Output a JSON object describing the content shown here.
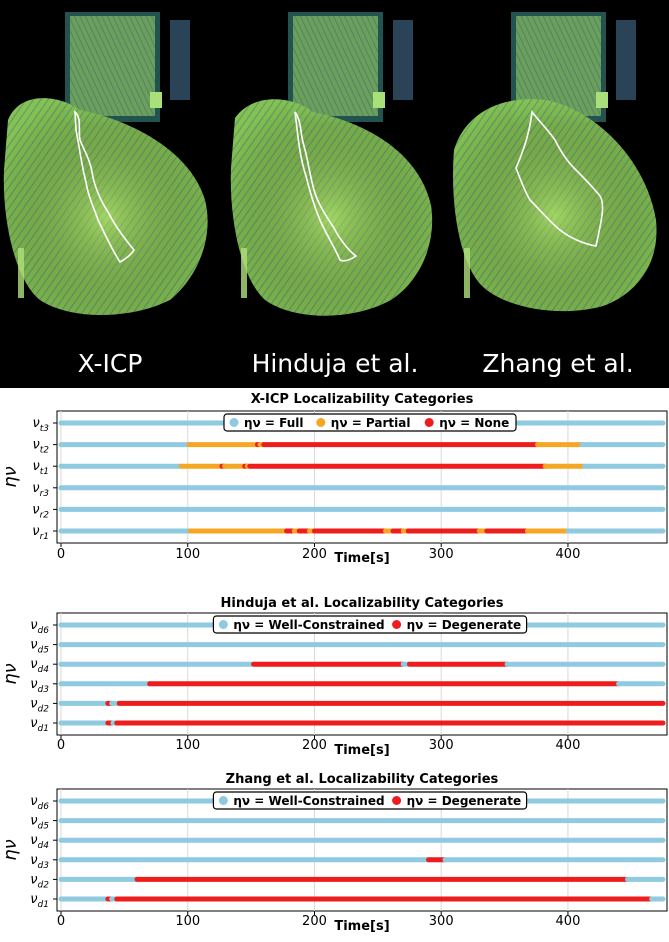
{
  "maps": [
    {
      "label": "X-ICP"
    },
    {
      "label": "Hinduja et al."
    },
    {
      "label": "Zhang et al."
    }
  ],
  "colors": {
    "full": "#8ecae0",
    "partial": "#f5a623",
    "none": "#ee1c1c",
    "map_green": "#9ad35a",
    "map_teal": "#2f8e8a",
    "trajectory": "#ffffff"
  },
  "chart_data": [
    {
      "type": "timeline",
      "title": "X-ICP Localizability Categories",
      "xlabel": "Time[s]",
      "ylabel": "ην",
      "xlim": [
        0,
        475
      ],
      "xticks": [
        0,
        100,
        200,
        300,
        400
      ],
      "grid": true,
      "legend": {
        "position": "top-center",
        "entries": [
          {
            "label": "ην = Full",
            "key": "full"
          },
          {
            "label": "ην = Partial",
            "key": "partial"
          },
          {
            "label": "ην = None",
            "key": "none"
          }
        ]
      },
      "rows": [
        {
          "base": "ν",
          "sub": "t3",
          "segments": [
            {
              "from": 0,
              "to": 475,
              "cat": "full"
            }
          ]
        },
        {
          "base": "ν",
          "sub": "t2",
          "segments": [
            {
              "from": 0,
              "to": 101,
              "cat": "full"
            },
            {
              "from": 101,
              "to": 155,
              "cat": "partial"
            },
            {
              "from": 155,
              "to": 157,
              "cat": "none"
            },
            {
              "from": 157,
              "to": 160,
              "cat": "partial"
            },
            {
              "from": 160,
              "to": 376,
              "cat": "none"
            },
            {
              "from": 376,
              "to": 411,
              "cat": "partial"
            },
            {
              "from": 411,
              "to": 475,
              "cat": "full"
            }
          ]
        },
        {
          "base": "ν",
          "sub": "t1",
          "segments": [
            {
              "from": 0,
              "to": 95,
              "cat": "full"
            },
            {
              "from": 95,
              "to": 127,
              "cat": "partial"
            },
            {
              "from": 127,
              "to": 129,
              "cat": "none"
            },
            {
              "from": 129,
              "to": 145,
              "cat": "partial"
            },
            {
              "from": 145,
              "to": 147,
              "cat": "none"
            },
            {
              "from": 147,
              "to": 149,
              "cat": "partial"
            },
            {
              "from": 149,
              "to": 382,
              "cat": "none"
            },
            {
              "from": 382,
              "to": 413,
              "cat": "partial"
            },
            {
              "from": 413,
              "to": 475,
              "cat": "full"
            }
          ]
        },
        {
          "base": "ν",
          "sub": "r3",
          "segments": [
            {
              "from": 0,
              "to": 475,
              "cat": "full"
            }
          ]
        },
        {
          "base": "ν",
          "sub": "r2",
          "segments": [
            {
              "from": 0,
              "to": 475,
              "cat": "full"
            }
          ]
        },
        {
          "base": "ν",
          "sub": "r1",
          "segments": [
            {
              "from": 0,
              "to": 102,
              "cat": "full"
            },
            {
              "from": 102,
              "to": 178,
              "cat": "partial"
            },
            {
              "from": 178,
              "to": 184,
              "cat": "none"
            },
            {
              "from": 184,
              "to": 188,
              "cat": "partial"
            },
            {
              "from": 188,
              "to": 196,
              "cat": "none"
            },
            {
              "from": 196,
              "to": 200,
              "cat": "partial"
            },
            {
              "from": 200,
              "to": 256,
              "cat": "none"
            },
            {
              "from": 256,
              "to": 262,
              "cat": "partial"
            },
            {
              "from": 262,
              "to": 270,
              "cat": "none"
            },
            {
              "from": 270,
              "to": 274,
              "cat": "partial"
            },
            {
              "from": 274,
              "to": 330,
              "cat": "none"
            },
            {
              "from": 330,
              "to": 336,
              "cat": "partial"
            },
            {
              "from": 336,
              "to": 368,
              "cat": "none"
            },
            {
              "from": 368,
              "to": 400,
              "cat": "partial"
            },
            {
              "from": 400,
              "to": 475,
              "cat": "full"
            }
          ]
        }
      ]
    },
    {
      "type": "timeline",
      "title": "Hinduja et al. Localizability Categories",
      "xlabel": "Time[s]",
      "ylabel": "ην",
      "xlim": [
        0,
        475
      ],
      "xticks": [
        0,
        100,
        200,
        300,
        400
      ],
      "grid": true,
      "legend": {
        "position": "top-center",
        "entries": [
          {
            "label": "ην = Well-Constrained",
            "key": "full"
          },
          {
            "label": "ην = Degenerate",
            "key": "none"
          }
        ]
      },
      "rows": [
        {
          "base": "ν",
          "sub": "d6",
          "segments": [
            {
              "from": 0,
              "to": 475,
              "cat": "full"
            }
          ]
        },
        {
          "base": "ν",
          "sub": "d5",
          "segments": [
            {
              "from": 0,
              "to": 475,
              "cat": "full"
            }
          ]
        },
        {
          "base": "ν",
          "sub": "d4",
          "segments": [
            {
              "from": 0,
              "to": 152,
              "cat": "full"
            },
            {
              "from": 152,
              "to": 270,
              "cat": "none"
            },
            {
              "from": 270,
              "to": 275,
              "cat": "full"
            },
            {
              "from": 275,
              "to": 352,
              "cat": "none"
            },
            {
              "from": 352,
              "to": 475,
              "cat": "full"
            }
          ]
        },
        {
          "base": "ν",
          "sub": "d3",
          "segments": [
            {
              "from": 0,
              "to": 70,
              "cat": "full"
            },
            {
              "from": 70,
              "to": 440,
              "cat": "none"
            },
            {
              "from": 440,
              "to": 475,
              "cat": "full"
            }
          ]
        },
        {
          "base": "ν",
          "sub": "d2",
          "segments": [
            {
              "from": 0,
              "to": 37,
              "cat": "full"
            },
            {
              "from": 37,
              "to": 40,
              "cat": "none"
            },
            {
              "from": 40,
              "to": 46,
              "cat": "full"
            },
            {
              "from": 46,
              "to": 475,
              "cat": "none"
            }
          ]
        },
        {
          "base": "ν",
          "sub": "d1",
          "segments": [
            {
              "from": 0,
              "to": 37,
              "cat": "full"
            },
            {
              "from": 37,
              "to": 41,
              "cat": "none"
            },
            {
              "from": 41,
              "to": 44,
              "cat": "full"
            },
            {
              "from": 44,
              "to": 475,
              "cat": "none"
            }
          ]
        }
      ]
    },
    {
      "type": "timeline",
      "title": "Zhang et al. Localizability Categories",
      "xlabel": "Time[s]",
      "ylabel": "ην",
      "xlim": [
        0,
        475
      ],
      "xticks": [
        0,
        100,
        200,
        300,
        400
      ],
      "grid": true,
      "legend": {
        "position": "top-center",
        "entries": [
          {
            "label": "ην = Well-Constrained",
            "key": "full"
          },
          {
            "label": "ην = Degenerate",
            "key": "none"
          }
        ]
      },
      "rows": [
        {
          "base": "ν",
          "sub": "d6",
          "segments": [
            {
              "from": 0,
              "to": 475,
              "cat": "full"
            }
          ]
        },
        {
          "base": "ν",
          "sub": "d5",
          "segments": [
            {
              "from": 0,
              "to": 475,
              "cat": "full"
            }
          ]
        },
        {
          "base": "ν",
          "sub": "d4",
          "segments": [
            {
              "from": 0,
              "to": 475,
              "cat": "full"
            }
          ]
        },
        {
          "base": "ν",
          "sub": "d3",
          "segments": [
            {
              "from": 0,
              "to": 290,
              "cat": "full"
            },
            {
              "from": 290,
              "to": 303,
              "cat": "none"
            },
            {
              "from": 303,
              "to": 475,
              "cat": "full"
            }
          ]
        },
        {
          "base": "ν",
          "sub": "d2",
          "segments": [
            {
              "from": 0,
              "to": 60,
              "cat": "full"
            },
            {
              "from": 60,
              "to": 447,
              "cat": "none"
            },
            {
              "from": 447,
              "to": 475,
              "cat": "full"
            }
          ]
        },
        {
          "base": "ν",
          "sub": "d1",
          "segments": [
            {
              "from": 0,
              "to": 37,
              "cat": "full"
            },
            {
              "from": 37,
              "to": 40,
              "cat": "none"
            },
            {
              "from": 40,
              "to": 44,
              "cat": "full"
            },
            {
              "from": 44,
              "to": 466,
              "cat": "none"
            },
            {
              "from": 466,
              "to": 475,
              "cat": "full"
            }
          ]
        }
      ]
    }
  ]
}
